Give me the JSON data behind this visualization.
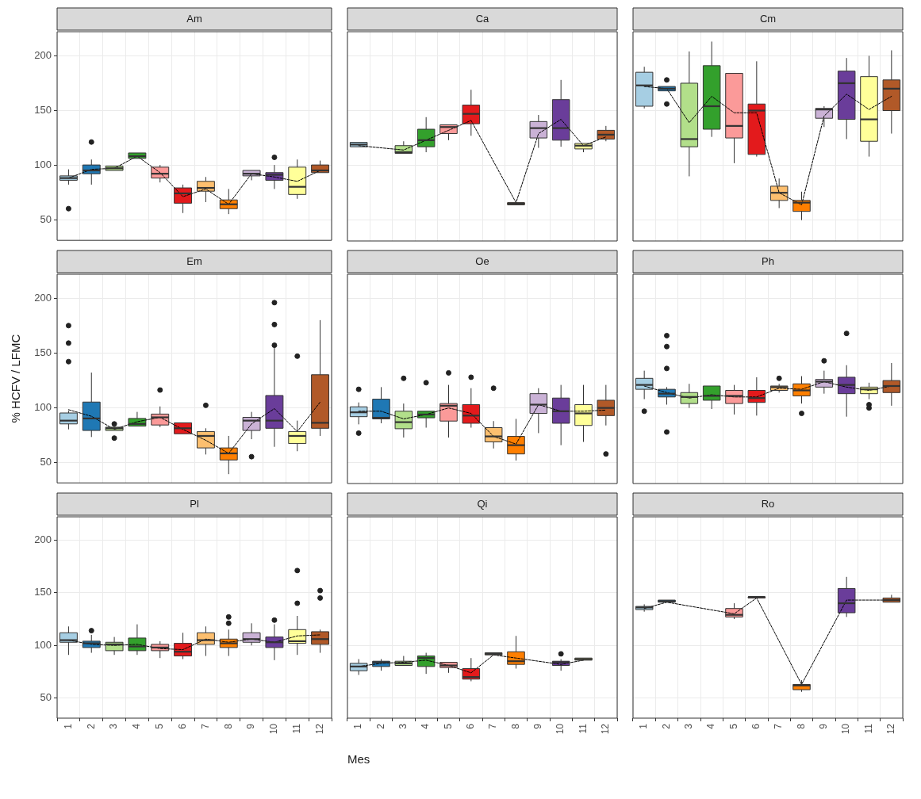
{
  "chart_data": [
    {
      "type": "box",
      "title": "Am",
      "categories": [
        "1",
        "2",
        "3",
        "4",
        "5",
        "6",
        "7",
        "8",
        "9",
        "10",
        "11",
        "12"
      ],
      "colors": [
        "#a6cee3",
        "#1f78b4",
        "#b2df8a",
        "#33a02c",
        "#fb9a99",
        "#e31a1c",
        "#fdbf6f",
        "#ff7f00",
        "#cab2d6",
        "#6a3d9a",
        "#ffff99",
        "#b15928"
      ],
      "boxes": [
        {
          "low": 82,
          "q1": 86,
          "median": 88,
          "q3": 90,
          "high": 96,
          "outliers": [
            60
          ]
        },
        {
          "low": 82,
          "q1": 92,
          "median": 95,
          "q3": 100,
          "high": 105,
          "outliers": [
            121
          ]
        },
        {
          "low": 95,
          "q1": 95,
          "median": 97,
          "q3": 99,
          "high": 99
        },
        {
          "low": 106,
          "q1": 106,
          "median": 108,
          "q3": 111,
          "high": 111
        },
        {
          "low": 84,
          "q1": 88,
          "median": 92,
          "q3": 98,
          "high": 100
        },
        {
          "low": 56,
          "q1": 65,
          "median": 74,
          "q3": 79,
          "high": 82
        },
        {
          "low": 66,
          "q1": 76,
          "median": 79,
          "q3": 85,
          "high": 89
        },
        {
          "low": 55,
          "q1": 60,
          "median": 64,
          "q3": 68,
          "high": 78
        },
        {
          "low": 86,
          "q1": 90,
          "median": 92,
          "q3": 95,
          "high": 95
        },
        {
          "low": 78,
          "q1": 86,
          "median": 91,
          "q3": 93,
          "high": 100,
          "outliers": [
            107
          ]
        },
        {
          "low": 69,
          "q1": 73,
          "median": 80,
          "q3": 98,
          "high": 105
        },
        {
          "low": 93,
          "q1": 93,
          "median": 95,
          "q3": 100,
          "high": 104
        }
      ],
      "series": [
        {
          "type": "line",
          "color": "#000000",
          "line_style": "dashed",
          "marker": "none",
          "values": [
            88,
            96,
            97,
            108,
            93,
            71,
            78,
            64,
            92,
            89,
            85,
            95
          ]
        }
      ],
      "ylim": [
        31,
        222
      ],
      "yticks": [
        50,
        100,
        150,
        200
      ],
      "grid": true,
      "tick_labels": "y"
    },
    {
      "type": "box",
      "title": "Ca",
      "categories": [
        "1",
        "2",
        "3",
        "4",
        "5",
        "6",
        "7",
        "8",
        "9",
        "10",
        "11",
        "12"
      ],
      "colors": [
        "#a6cee3",
        "#1f78b4",
        "#b2df8a",
        "#33a02c",
        "#fb9a99",
        "#e31a1c",
        "#fdbf6f",
        "#ff7f00",
        "#cab2d6",
        "#6a3d9a",
        "#ffff99",
        "#b15928"
      ],
      "boxes": [
        {
          "low": 117,
          "q1": 117,
          "median": 119,
          "q3": 121,
          "high": 121
        },
        null,
        {
          "low": 111,
          "q1": 111,
          "median": 112,
          "q3": 118,
          "high": 122
        },
        {
          "low": 112,
          "q1": 117,
          "median": 123,
          "q3": 133,
          "high": 144
        },
        {
          "low": 123,
          "q1": 129,
          "median": 135,
          "q3": 137,
          "high": 137
        },
        {
          "low": 127,
          "q1": 138,
          "median": 147,
          "q3": 155,
          "high": 169
        },
        null,
        {
          "low": 64,
          "q1": 64,
          "median": 65,
          "q3": 66,
          "high": 66
        },
        {
          "low": 116,
          "q1": 125,
          "median": 134,
          "q3": 140,
          "high": 146
        },
        {
          "low": 117,
          "q1": 123,
          "median": 134,
          "q3": 160,
          "high": 178
        },
        {
          "low": 112,
          "q1": 115,
          "median": 118,
          "q3": 120,
          "high": 120
        },
        {
          "low": 122,
          "q1": 124,
          "median": 128,
          "q3": 132,
          "high": 136
        }
      ],
      "series": [
        {
          "type": "line",
          "color": "#000000",
          "line_style": "dashed",
          "marker": "none",
          "values": [
            118,
            null,
            114,
            123,
            132,
            141,
            null,
            66,
            129,
            142,
            118,
            126
          ]
        }
      ],
      "ylim": [
        31,
        222
      ],
      "yticks": [
        50,
        100,
        150,
        200
      ],
      "grid": true,
      "tick_labels": false
    },
    {
      "type": "box",
      "title": "Cm",
      "categories": [
        "1",
        "2",
        "3",
        "4",
        "5",
        "6",
        "7",
        "8",
        "9",
        "10",
        "11",
        "12"
      ],
      "colors": [
        "#a6cee3",
        "#1f78b4",
        "#b2df8a",
        "#33a02c",
        "#fb9a99",
        "#e31a1c",
        "#fdbf6f",
        "#ff7f00",
        "#cab2d6",
        "#6a3d9a",
        "#ffff99",
        "#b15928"
      ],
      "boxes": [
        {
          "low": 152,
          "q1": 154,
          "median": 173,
          "q3": 185,
          "high": 190
        },
        {
          "low": 168,
          "q1": 168,
          "median": 170,
          "q3": 172,
          "high": 172,
          "outliers": [
            178,
            156
          ]
        },
        {
          "low": 90,
          "q1": 117,
          "median": 124,
          "q3": 175,
          "high": 204
        },
        {
          "low": 126,
          "q1": 133,
          "median": 154,
          "q3": 191,
          "high": 213
        },
        {
          "low": 102,
          "q1": 125,
          "median": 136,
          "q3": 184,
          "high": 184
        },
        {
          "low": 108,
          "q1": 110,
          "median": 150,
          "q3": 156,
          "high": 195
        },
        {
          "low": 61,
          "q1": 68,
          "median": 75,
          "q3": 81,
          "high": 88
        },
        {
          "low": 50,
          "q1": 58,
          "median": 66,
          "q3": 68,
          "high": 76
        },
        {
          "low": 135,
          "q1": 143,
          "median": 151,
          "q3": 152,
          "high": 154
        },
        {
          "low": 124,
          "q1": 142,
          "median": 175,
          "q3": 186,
          "high": 198
        },
        {
          "low": 108,
          "q1": 122,
          "median": 142,
          "q3": 181,
          "high": 200
        },
        {
          "low": 129,
          "q1": 150,
          "median": 170,
          "q3": 178,
          "high": 205
        }
      ],
      "series": [
        {
          "type": "line",
          "color": "#000000",
          "line_style": "dashed",
          "marker": "none",
          "values": [
            172,
            170,
            139,
            163,
            148,
            148,
            75,
            64,
            145,
            165,
            151,
            163
          ]
        }
      ],
      "ylim": [
        31,
        222
      ],
      "yticks": [
        50,
        100,
        150,
        200
      ],
      "grid": true,
      "tick_labels": false
    },
    {
      "type": "box",
      "title": "Em",
      "ylabel": "% HCFV / LFMC",
      "categories": [
        "1",
        "2",
        "3",
        "4",
        "5",
        "6",
        "7",
        "8",
        "9",
        "10",
        "11",
        "12"
      ],
      "colors": [
        "#a6cee3",
        "#1f78b4",
        "#b2df8a",
        "#33a02c",
        "#fb9a99",
        "#e31a1c",
        "#fdbf6f",
        "#ff7f00",
        "#cab2d6",
        "#6a3d9a",
        "#ffff99",
        "#b15928"
      ],
      "boxes": [
        {
          "low": 80,
          "q1": 85,
          "median": 88,
          "q3": 95,
          "high": 97,
          "outliers": [
            175,
            159,
            142
          ]
        },
        {
          "low": 73,
          "q1": 79,
          "median": 90,
          "q3": 105,
          "high": 132
        },
        {
          "low": 79,
          "q1": 79,
          "median": 81,
          "q3": 82,
          "high": 84,
          "outliers": [
            85,
            72
          ]
        },
        {
          "low": 83,
          "q1": 83,
          "median": 85,
          "q3": 90,
          "high": 96
        },
        {
          "low": 82,
          "q1": 84,
          "median": 91,
          "q3": 94,
          "high": 101,
          "outliers": [
            116
          ]
        },
        {
          "low": 76,
          "q1": 76,
          "median": 81,
          "q3": 86,
          "high": 86
        },
        {
          "low": 57,
          "q1": 63,
          "median": 74,
          "q3": 78,
          "high": 81,
          "outliers": [
            102
          ]
        },
        {
          "low": 39,
          "q1": 52,
          "median": 58,
          "q3": 63,
          "high": 74
        },
        {
          "low": 71,
          "q1": 79,
          "median": 88,
          "q3": 91,
          "high": 96,
          "outliers": [
            55
          ]
        },
        {
          "low": 64,
          "q1": 81,
          "median": 88,
          "q3": 111,
          "high": 155,
          "outliers": [
            196,
            176,
            157
          ]
        },
        {
          "low": 60,
          "q1": 67,
          "median": 74,
          "q3": 78,
          "high": 88,
          "outliers": [
            147
          ]
        },
        {
          "low": 74,
          "q1": 81,
          "median": 86,
          "q3": 130,
          "high": 180
        }
      ],
      "series": [
        {
          "type": "line",
          "color": "#000000",
          "line_style": "dashed",
          "marker": "none",
          "values": [
            98,
            92,
            80,
            87,
            91,
            80,
            70,
            58,
            85,
            99,
            78,
            105
          ]
        }
      ],
      "ylim": [
        31,
        222
      ],
      "yticks": [
        50,
        100,
        150,
        200
      ],
      "grid": true,
      "tick_labels": "y"
    },
    {
      "type": "box",
      "title": "Oe",
      "categories": [
        "1",
        "2",
        "3",
        "4",
        "5",
        "6",
        "7",
        "8",
        "9",
        "10",
        "11",
        "12"
      ],
      "colors": [
        "#a6cee3",
        "#1f78b4",
        "#b2df8a",
        "#33a02c",
        "#fb9a99",
        "#e31a1c",
        "#fdbf6f",
        "#ff7f00",
        "#cab2d6",
        "#6a3d9a",
        "#ffff99",
        "#b15928"
      ],
      "boxes": [
        {
          "low": 85,
          "q1": 92,
          "median": 96,
          "q3": 101,
          "high": 105,
          "outliers": [
            117,
            77
          ]
        },
        {
          "low": 86,
          "q1": 90,
          "median": 91,
          "q3": 108,
          "high": 119
        },
        {
          "low": 73,
          "q1": 81,
          "median": 87,
          "q3": 97,
          "high": 104,
          "outliers": [
            127
          ]
        },
        {
          "low": 82,
          "q1": 91,
          "median": 94,
          "q3": 97,
          "high": 97,
          "outliers": [
            123
          ]
        },
        {
          "low": 73,
          "q1": 88,
          "median": 102,
          "q3": 104,
          "high": 121,
          "outliers": [
            132
          ]
        },
        {
          "low": 82,
          "q1": 86,
          "median": 93,
          "q3": 103,
          "high": 118,
          "outliers": [
            128
          ]
        },
        {
          "low": 63,
          "q1": 69,
          "median": 74,
          "q3": 82,
          "high": 88,
          "outliers": [
            118
          ]
        },
        {
          "low": 52,
          "q1": 58,
          "median": 66,
          "q3": 74,
          "high": 90
        },
        {
          "low": 77,
          "q1": 95,
          "median": 103,
          "q3": 113,
          "high": 118
        },
        {
          "low": 66,
          "q1": 86,
          "median": 97,
          "q3": 109,
          "high": 121
        },
        {
          "low": 69,
          "q1": 84,
          "median": 95,
          "q3": 103,
          "high": 121
        },
        {
          "low": 84,
          "q1": 93,
          "median": 100,
          "q3": 107,
          "high": 121,
          "outliers": [
            58
          ]
        }
      ],
      "series": [
        {
          "type": "line",
          "color": "#000000",
          "line_style": "dashed",
          "marker": "none",
          "values": [
            97,
            97,
            90,
            94,
            100,
            95,
            74,
            67,
            103,
            97,
            97,
            98
          ]
        }
      ],
      "ylim": [
        31,
        222
      ],
      "yticks": [
        50,
        100,
        150,
        200
      ],
      "grid": true,
      "tick_labels": false
    },
    {
      "type": "box",
      "title": "Ph",
      "categories": [
        "1",
        "2",
        "3",
        "4",
        "5",
        "6",
        "7",
        "8",
        "9",
        "10",
        "11",
        "12"
      ],
      "colors": [
        "#a6cee3",
        "#1f78b4",
        "#b2df8a",
        "#33a02c",
        "#fb9a99",
        "#e31a1c",
        "#fdbf6f",
        "#ff7f00",
        "#cab2d6",
        "#6a3d9a",
        "#ffff99",
        "#b15928"
      ],
      "boxes": [
        {
          "low": 108,
          "q1": 117,
          "median": 121,
          "q3": 127,
          "high": 134,
          "outliers": [
            97
          ]
        },
        {
          "low": 103,
          "q1": 110,
          "median": 113,
          "q3": 117,
          "high": 119,
          "outliers": [
            166,
            156,
            136,
            78
          ]
        },
        {
          "low": 100,
          "q1": 104,
          "median": 110,
          "q3": 114,
          "high": 122
        },
        {
          "low": 99,
          "q1": 107,
          "median": 111,
          "q3": 120,
          "high": 120
        },
        {
          "low": 94,
          "q1": 104,
          "median": 111,
          "q3": 116,
          "high": 121
        },
        {
          "low": 93,
          "q1": 105,
          "median": 109,
          "q3": 116,
          "high": 128
        },
        {
          "low": 114,
          "q1": 116,
          "median": 119,
          "q3": 120,
          "high": 122,
          "outliers": [
            127
          ]
        },
        {
          "low": 104,
          "q1": 111,
          "median": 116,
          "q3": 122,
          "high": 129,
          "outliers": [
            95
          ]
        },
        {
          "low": 113,
          "q1": 119,
          "median": 124,
          "q3": 126,
          "high": 134,
          "outliers": [
            143
          ]
        },
        {
          "low": 92,
          "q1": 113,
          "median": 121,
          "q3": 128,
          "high": 139,
          "outliers": [
            168
          ]
        },
        {
          "low": 108,
          "q1": 113,
          "median": 117,
          "q3": 119,
          "high": 123,
          "outliers": [
            103,
            100
          ]
        },
        {
          "low": 102,
          "q1": 114,
          "median": 120,
          "q3": 125,
          "high": 141
        }
      ],
      "series": [
        {
          "type": "line",
          "color": "#000000",
          "line_style": "dashed",
          "marker": "none",
          "values": [
            120,
            114,
            109,
            112,
            110,
            110,
            118,
            117,
            124,
            119,
            116,
            120
          ]
        }
      ],
      "ylim": [
        31,
        222
      ],
      "yticks": [
        50,
        100,
        150,
        200
      ],
      "grid": true,
      "tick_labels": false
    },
    {
      "type": "box",
      "title": "Pl",
      "categories": [
        "1",
        "2",
        "3",
        "4",
        "5",
        "6",
        "7",
        "8",
        "9",
        "10",
        "11",
        "12"
      ],
      "colors": [
        "#a6cee3",
        "#1f78b4",
        "#b2df8a",
        "#33a02c",
        "#fb9a99",
        "#e31a1c",
        "#fdbf6f",
        "#ff7f00",
        "#cab2d6",
        "#6a3d9a",
        "#ffff99",
        "#b15928"
      ],
      "boxes": [
        {
          "low": 91,
          "q1": 103,
          "median": 105,
          "q3": 112,
          "high": 118
        },
        {
          "low": 93,
          "q1": 98,
          "median": 102,
          "q3": 104,
          "high": 110,
          "outliers": [
            114
          ]
        },
        {
          "low": 91,
          "q1": 95,
          "median": 101,
          "q3": 103,
          "high": 108
        },
        {
          "low": 91,
          "q1": 95,
          "median": 99,
          "q3": 107,
          "high": 120
        },
        {
          "low": 88,
          "q1": 95,
          "median": 98,
          "q3": 101,
          "high": 104
        },
        {
          "low": 87,
          "q1": 90,
          "median": 94,
          "q3": 102,
          "high": 112
        },
        {
          "low": 90,
          "q1": 101,
          "median": 105,
          "q3": 112,
          "high": 118
        },
        {
          "low": 90,
          "q1": 98,
          "median": 102,
          "q3": 106,
          "high": 115,
          "outliers": [
            127,
            121
          ]
        },
        {
          "low": 100,
          "q1": 103,
          "median": 106,
          "q3": 112,
          "high": 121
        },
        {
          "low": 86,
          "q1": 98,
          "median": 103,
          "q3": 108,
          "high": 120,
          "outliers": [
            124
          ]
        },
        {
          "low": 91,
          "q1": 102,
          "median": 104,
          "q3": 115,
          "high": 128,
          "outliers": [
            171,
            140
          ]
        },
        {
          "low": 93,
          "q1": 101,
          "median": 106,
          "q3": 113,
          "high": 115,
          "outliers": [
            152,
            145
          ]
        }
      ],
      "series": [
        {
          "type": "line",
          "color": "#000000",
          "line_style": "dashed",
          "marker": "none",
          "values": [
            105,
            101,
            100,
            101,
            97,
            96,
            106,
            103,
            106,
            103,
            109,
            110
          ]
        }
      ],
      "ylim": [
        31,
        222
      ],
      "yticks": [
        50,
        100,
        150,
        200
      ],
      "grid": true
    },
    {
      "type": "box",
      "title": "Qi",
      "xlabel": "Mes",
      "categories": [
        "1",
        "2",
        "3",
        "4",
        "5",
        "6",
        "7",
        "8",
        "9",
        "10",
        "11",
        "12"
      ],
      "colors": [
        "#a6cee3",
        "#1f78b4",
        "#b2df8a",
        "#33a02c",
        "#fb9a99",
        "#e31a1c",
        "#fdbf6f",
        "#ff7f00",
        "#cab2d6",
        "#6a3d9a",
        "#ffff99",
        "#b15928"
      ],
      "boxes": [
        {
          "low": 72,
          "q1": 76,
          "median": 80,
          "q3": 83,
          "high": 87
        },
        {
          "low": 76,
          "q1": 80,
          "median": 84,
          "q3": 85,
          "high": 87
        },
        {
          "low": 81,
          "q1": 81,
          "median": 83,
          "q3": 85,
          "high": 90
        },
        {
          "low": 73,
          "q1": 80,
          "median": 88,
          "q3": 90,
          "high": 93
        },
        {
          "low": 74,
          "q1": 79,
          "median": 81,
          "q3": 84,
          "high": 84
        },
        {
          "low": 66,
          "q1": 68,
          "median": 70,
          "q3": 78,
          "high": 88
        },
        {
          "low": 91,
          "q1": 91,
          "median": 92,
          "q3": 93,
          "high": 93
        },
        {
          "low": 78,
          "q1": 82,
          "median": 85,
          "q3": 94,
          "high": 109
        },
        null,
        {
          "low": 76,
          "q1": 81,
          "median": 84,
          "q3": 85,
          "high": 87,
          "outliers": [
            92
          ]
        },
        {
          "low": 86,
          "q1": 86,
          "median": 87,
          "q3": 88,
          "high": 88
        },
        null
      ],
      "series": [
        {
          "type": "line",
          "color": "#000000",
          "line_style": "dashed",
          "marker": "none",
          "values": [
            80,
            83,
            84,
            86,
            81,
            74,
            91,
            88,
            null,
            82,
            86,
            null
          ]
        }
      ],
      "ylim": [
        31,
        222
      ],
      "yticks": [
        50,
        100,
        150,
        200
      ],
      "grid": true,
      "tick_labels": "x"
    },
    {
      "type": "box",
      "title": "Ro",
      "categories": [
        "1",
        "2",
        "3",
        "4",
        "5",
        "6",
        "7",
        "8",
        "9",
        "10",
        "11",
        "12"
      ],
      "colors": [
        "#a6cee3",
        "#1f78b4",
        "#b2df8a",
        "#33a02c",
        "#fb9a99",
        "#e31a1c",
        "#fdbf6f",
        "#ff7f00",
        "#cab2d6",
        "#6a3d9a",
        "#ffff99",
        "#b15928"
      ],
      "boxes": [
        {
          "low": 132,
          "q1": 134,
          "median": 136,
          "q3": 137,
          "high": 139
        },
        {
          "low": 141,
          "q1": 141,
          "median": 142,
          "q3": 143,
          "high": 143
        },
        null,
        null,
        {
          "low": 125,
          "q1": 127,
          "median": 129,
          "q3": 135,
          "high": 140
        },
        {
          "low": 145,
          "q1": 145,
          "median": 146,
          "q3": 146,
          "high": 146
        },
        null,
        {
          "low": 56,
          "q1": 58,
          "median": 62,
          "q3": 63,
          "high": 67
        },
        null,
        {
          "low": 127,
          "q1": 131,
          "median": 140,
          "q3": 154,
          "high": 165
        },
        null,
        {
          "low": 141,
          "q1": 141,
          "median": 143,
          "q3": 145,
          "high": 148
        }
      ],
      "series": [
        {
          "type": "line",
          "color": "#000000",
          "line_style": "dashed",
          "marker": "none",
          "values": [
            135,
            141,
            null,
            null,
            130,
            145,
            null,
            63,
            null,
            143,
            null,
            143
          ]
        }
      ],
      "ylim": [
        31,
        222
      ],
      "yticks": [
        50,
        100,
        150,
        200
      ],
      "grid": true,
      "tick_labels": "x"
    }
  ]
}
